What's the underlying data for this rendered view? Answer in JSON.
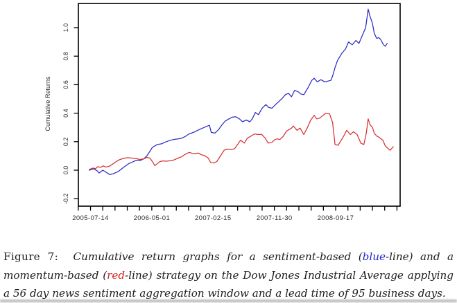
{
  "figure": {
    "label": "Figure 7:",
    "caption_segments": [
      {
        "text": "Cumulative return graphs for a sentiment-based (",
        "color": "#1c1c1c"
      },
      {
        "text": "blue",
        "color": "#2323cc"
      },
      {
        "text": "-line) and a momentum-based (",
        "color": "#1c1c1c"
      },
      {
        "text": "red",
        "color": "#d42222"
      },
      {
        "text": "-line) strategy on the Dow Jones Industrial Average applying a 56 day news sentiment aggregation window and a lead time of 95 business days.",
        "color": "#1c1c1c"
      }
    ]
  },
  "chart_data": {
    "type": "line",
    "title": "",
    "xlabel": "",
    "ylabel": "Cumulative Returns",
    "grid": false,
    "legend": "none (line colors explained in caption)",
    "axis_color": "#000000",
    "x_tick_labels": [
      "2005-07-14",
      "2006-05-01",
      "2007-02-15",
      "2007-11-30",
      "2008-09-17"
    ],
    "x_tick_positions": [
      0,
      1,
      2,
      3,
      4
    ],
    "x_minor_tick_step": 0.2,
    "x_units": "major tick interval = 200 business days",
    "xlim": [
      -0.198,
      5.052
    ],
    "ylim": [
      -0.2524,
      1.1699
    ],
    "y_ticks": [
      -0.2,
      0.0,
      0.2,
      0.4,
      0.6,
      0.8,
      1.0
    ],
    "series": [
      {
        "name": "sentiment-based strategy",
        "color": "#2b2bc6",
        "points": [
          [
            -0.02,
            0.0
          ],
          [
            0.05,
            0.01
          ],
          [
            0.11,
            -0.005
          ],
          [
            0.14,
            -0.02
          ],
          [
            0.2,
            0.0
          ],
          [
            0.24,
            -0.01
          ],
          [
            0.31,
            -0.03
          ],
          [
            0.37,
            -0.025
          ],
          [
            0.45,
            -0.01
          ],
          [
            0.54,
            0.02
          ],
          [
            0.62,
            0.045
          ],
          [
            0.7,
            0.06
          ],
          [
            0.75,
            0.07
          ],
          [
            0.81,
            0.068
          ],
          [
            0.87,
            0.08
          ],
          [
            0.92,
            0.1
          ],
          [
            1.01,
            0.16
          ],
          [
            1.09,
            0.18
          ],
          [
            1.16,
            0.185
          ],
          [
            1.21,
            0.195
          ],
          [
            1.27,
            0.205
          ],
          [
            1.35,
            0.215
          ],
          [
            1.43,
            0.22
          ],
          [
            1.49,
            0.225
          ],
          [
            1.54,
            0.235
          ],
          [
            1.61,
            0.255
          ],
          [
            1.68,
            0.265
          ],
          [
            1.75,
            0.28
          ],
          [
            1.8,
            0.29
          ],
          [
            1.88,
            0.305
          ],
          [
            1.94,
            0.315
          ],
          [
            1.97,
            0.265
          ],
          [
            2.03,
            0.26
          ],
          [
            2.09,
            0.285
          ],
          [
            2.14,
            0.315
          ],
          [
            2.2,
            0.345
          ],
          [
            2.26,
            0.36
          ],
          [
            2.31,
            0.372
          ],
          [
            2.37,
            0.375
          ],
          [
            2.43,
            0.36
          ],
          [
            2.48,
            0.34
          ],
          [
            2.54,
            0.352
          ],
          [
            2.6,
            0.34
          ],
          [
            2.64,
            0.36
          ],
          [
            2.69,
            0.405
          ],
          [
            2.74,
            0.39
          ],
          [
            2.8,
            0.435
          ],
          [
            2.86,
            0.46
          ],
          [
            2.91,
            0.44
          ],
          [
            2.96,
            0.435
          ],
          [
            3.02,
            0.46
          ],
          [
            3.07,
            0.48
          ],
          [
            3.13,
            0.505
          ],
          [
            3.18,
            0.53
          ],
          [
            3.23,
            0.54
          ],
          [
            3.28,
            0.515
          ],
          [
            3.33,
            0.56
          ],
          [
            3.39,
            0.55
          ],
          [
            3.43,
            0.535
          ],
          [
            3.48,
            0.53
          ],
          [
            3.55,
            0.58
          ],
          [
            3.61,
            0.63
          ],
          [
            3.65,
            0.645
          ],
          [
            3.7,
            0.62
          ],
          [
            3.76,
            0.635
          ],
          [
            3.82,
            0.62
          ],
          [
            3.87,
            0.625
          ],
          [
            3.92,
            0.63
          ],
          [
            3.95,
            0.66
          ],
          [
            3.99,
            0.72
          ],
          [
            4.03,
            0.77
          ],
          [
            4.1,
            0.82
          ],
          [
            4.16,
            0.85
          ],
          [
            4.21,
            0.9
          ],
          [
            4.27,
            0.88
          ],
          [
            4.33,
            0.91
          ],
          [
            4.38,
            0.89
          ],
          [
            4.44,
            0.95
          ],
          [
            4.49,
            1.0
          ],
          [
            4.53,
            1.13
          ],
          [
            4.56,
            1.08
          ],
          [
            4.6,
            1.03
          ],
          [
            4.63,
            0.96
          ],
          [
            4.67,
            0.925
          ],
          [
            4.7,
            0.93
          ],
          [
            4.73,
            0.92
          ],
          [
            4.78,
            0.88
          ],
          [
            4.81,
            0.87
          ],
          [
            4.84,
            0.89
          ]
        ]
      },
      {
        "name": "momentum-based strategy",
        "color": "#d83030",
        "points": [
          [
            -0.02,
            0.005
          ],
          [
            0.04,
            0.015
          ],
          [
            0.08,
            0.01
          ],
          [
            0.12,
            0.025
          ],
          [
            0.16,
            0.02
          ],
          [
            0.21,
            0.03
          ],
          [
            0.25,
            0.022
          ],
          [
            0.31,
            0.028
          ],
          [
            0.37,
            0.045
          ],
          [
            0.42,
            0.06
          ],
          [
            0.48,
            0.075
          ],
          [
            0.54,
            0.083
          ],
          [
            0.61,
            0.088
          ],
          [
            0.67,
            0.085
          ],
          [
            0.74,
            0.082
          ],
          [
            0.81,
            0.075
          ],
          [
            0.87,
            0.08
          ],
          [
            0.92,
            0.09
          ],
          [
            0.97,
            0.085
          ],
          [
            1.01,
            0.06
          ],
          [
            1.05,
            0.032
          ],
          [
            1.09,
            0.045
          ],
          [
            1.13,
            0.06
          ],
          [
            1.18,
            0.065
          ],
          [
            1.24,
            0.063
          ],
          [
            1.3,
            0.066
          ],
          [
            1.35,
            0.07
          ],
          [
            1.43,
            0.085
          ],
          [
            1.49,
            0.095
          ],
          [
            1.54,
            0.11
          ],
          [
            1.61,
            0.125
          ],
          [
            1.69,
            0.115
          ],
          [
            1.76,
            0.12
          ],
          [
            1.8,
            0.11
          ],
          [
            1.87,
            0.1
          ],
          [
            1.92,
            0.085
          ],
          [
            1.96,
            0.055
          ],
          [
            2.01,
            0.05
          ],
          [
            2.06,
            0.06
          ],
          [
            2.12,
            0.1
          ],
          [
            2.18,
            0.14
          ],
          [
            2.23,
            0.148
          ],
          [
            2.29,
            0.145
          ],
          [
            2.35,
            0.15
          ],
          [
            2.4,
            0.18
          ],
          [
            2.45,
            0.21
          ],
          [
            2.51,
            0.19
          ],
          [
            2.56,
            0.225
          ],
          [
            2.62,
            0.24
          ],
          [
            2.68,
            0.255
          ],
          [
            2.73,
            0.25
          ],
          [
            2.79,
            0.252
          ],
          [
            2.85,
            0.225
          ],
          [
            2.9,
            0.19
          ],
          [
            2.96,
            0.195
          ],
          [
            3.01,
            0.215
          ],
          [
            3.05,
            0.22
          ],
          [
            3.09,
            0.215
          ],
          [
            3.14,
            0.235
          ],
          [
            3.2,
            0.275
          ],
          [
            3.28,
            0.295
          ],
          [
            3.31,
            0.31
          ],
          [
            3.37,
            0.28
          ],
          [
            3.42,
            0.295
          ],
          [
            3.48,
            0.25
          ],
          [
            3.54,
            0.3
          ],
          [
            3.59,
            0.35
          ],
          [
            3.65,
            0.385
          ],
          [
            3.69,
            0.36
          ],
          [
            3.74,
            0.365
          ],
          [
            3.78,
            0.38
          ],
          [
            3.84,
            0.4
          ],
          [
            3.9,
            0.395
          ],
          [
            3.95,
            0.335
          ],
          [
            3.99,
            0.18
          ],
          [
            4.04,
            0.175
          ],
          [
            4.09,
            0.21
          ],
          [
            4.12,
            0.23
          ],
          [
            4.18,
            0.28
          ],
          [
            4.24,
            0.25
          ],
          [
            4.29,
            0.27
          ],
          [
            4.35,
            0.25
          ],
          [
            4.41,
            0.19
          ],
          [
            4.46,
            0.18
          ],
          [
            4.5,
            0.26
          ],
          [
            4.53,
            0.36
          ],
          [
            4.56,
            0.32
          ],
          [
            4.6,
            0.3
          ],
          [
            4.63,
            0.26
          ],
          [
            4.67,
            0.24
          ],
          [
            4.71,
            0.23
          ],
          [
            4.77,
            0.21
          ],
          [
            4.81,
            0.17
          ],
          [
            4.86,
            0.15
          ],
          [
            4.89,
            0.14
          ],
          [
            4.94,
            0.165
          ]
        ]
      }
    ]
  }
}
